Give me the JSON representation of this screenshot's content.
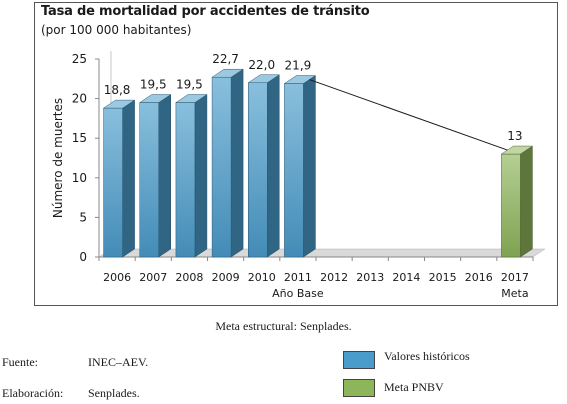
{
  "chart": {
    "title": "Tasa de mortalidad por accidentes de tránsito",
    "subtitle": "(por 100 000 habitantes)"
  },
  "chart_data": {
    "type": "bar",
    "title": "Tasa de mortalidad por accidentes de tránsito",
    "subtitle": "(por 100 000 habitantes)",
    "ylabel": "Número de muertes",
    "xlabel": "",
    "ylim": [
      0,
      25
    ],
    "yticks": [
      0,
      5,
      10,
      15,
      20,
      25
    ],
    "grid": false,
    "categories": [
      "2006",
      "2007",
      "2008",
      "2009",
      "2010",
      "2011",
      "2012",
      "2013",
      "2014",
      "2015",
      "2016",
      "2017"
    ],
    "category_sublabels": {
      "2011": "Año Base",
      "2017": "Meta"
    },
    "series": [
      {
        "name": "Valores históricos",
        "color": "#4a9ccb",
        "points": [
          {
            "x": "2006",
            "y": 18.8,
            "label": "18,8"
          },
          {
            "x": "2007",
            "y": 19.5,
            "label": "19,5"
          },
          {
            "x": "2008",
            "y": 19.5,
            "label": "19,5"
          },
          {
            "x": "2009",
            "y": 22.7,
            "label": "22,7"
          },
          {
            "x": "2010",
            "y": 22.0,
            "label": "22,0"
          },
          {
            "x": "2011",
            "y": 21.9,
            "label": "21,9"
          }
        ]
      },
      {
        "name": "Meta PNBV",
        "color": "#8db55a",
        "points": [
          {
            "x": "2017",
            "y": 13,
            "label": "13"
          }
        ]
      }
    ],
    "trend_line": {
      "from": {
        "x": "2011",
        "y": 21.9
      },
      "to": {
        "x": "2017",
        "y": 13
      }
    }
  },
  "caption": "Meta estructural: Senplades.",
  "source": {
    "label": "Fuente:",
    "value": "INEC–AEV."
  },
  "elaboration": {
    "label": "Elaboración:",
    "value": "Senplades."
  },
  "legend": [
    {
      "label": "Valores históricos",
      "color": "#4a9ccb"
    },
    {
      "label": "Meta PNBV",
      "color": "#8db55a"
    }
  ]
}
